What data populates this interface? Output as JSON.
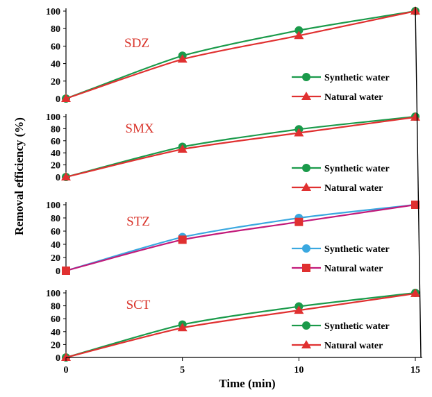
{
  "chart_data": [
    {
      "type": "line",
      "title": "SDZ",
      "x": [
        0,
        5,
        10,
        15
      ],
      "xlim": [
        0,
        15
      ],
      "ylim": [
        0,
        100
      ],
      "yticks": [
        "0",
        "20",
        "40",
        "60",
        "80",
        "100"
      ],
      "series": [
        {
          "name": "Synthetic water",
          "values": [
            0,
            49,
            78,
            100
          ],
          "color": "#1a9a4a",
          "line_color": "#1a9a4a",
          "marker": "circle"
        },
        {
          "name": "Natural water",
          "values": [
            0,
            45,
            72,
            100
          ],
          "color": "#e03030",
          "line_color": "#e03030",
          "marker": "triangle"
        }
      ]
    },
    {
      "type": "line",
      "title": "SMX",
      "x": [
        0,
        5,
        10,
        15
      ],
      "xlim": [
        0,
        15
      ],
      "ylim": [
        0,
        100
      ],
      "yticks": [
        "0",
        "20",
        "40",
        "60",
        "80",
        "100"
      ],
      "series": [
        {
          "name": "Synthetic water",
          "values": [
            0,
            50,
            79,
            100
          ],
          "color": "#1a9a4a",
          "line_color": "#1a9a4a",
          "marker": "circle"
        },
        {
          "name": "Natural water",
          "values": [
            0,
            46,
            73,
            99
          ],
          "color": "#e03030",
          "line_color": "#e03030",
          "marker": "triangle"
        }
      ]
    },
    {
      "type": "line",
      "title": "STZ",
      "x": [
        0,
        5,
        10,
        15
      ],
      "xlim": [
        0,
        15
      ],
      "ylim": [
        0,
        100
      ],
      "yticks": [
        "0",
        "20",
        "40",
        "60",
        "80",
        "100"
      ],
      "series": [
        {
          "name": "Synthetic water",
          "values": [
            0,
            51,
            80,
            100
          ],
          "color": "#3aa8e0",
          "line_color": "#3aa8e0",
          "marker": "circle"
        },
        {
          "name": "Natural water",
          "values": [
            0,
            47,
            74,
            100
          ],
          "color": "#e03030",
          "line_color": "#c21a7a",
          "marker": "square"
        }
      ]
    },
    {
      "type": "line",
      "title": "SCT",
      "x": [
        0,
        5,
        10,
        15
      ],
      "xlim": [
        0,
        15
      ],
      "ylim": [
        0,
        100
      ],
      "yticks": [
        "0",
        "20",
        "40",
        "60",
        "80",
        "100"
      ],
      "series": [
        {
          "name": "Synthetic water",
          "values": [
            0,
            51,
            79,
            100
          ],
          "color": "#1a9a4a",
          "line_color": "#1a9a4a",
          "marker": "circle"
        },
        {
          "name": "Natural water",
          "values": [
            0,
            46,
            73,
            99
          ],
          "color": "#e03030",
          "line_color": "#e03030",
          "marker": "triangle"
        }
      ]
    }
  ],
  "xticks": [
    "0",
    "5",
    "10",
    "15"
  ],
  "xlabel": "Time (min)",
  "ylabel": "Removal efficiency (%)"
}
